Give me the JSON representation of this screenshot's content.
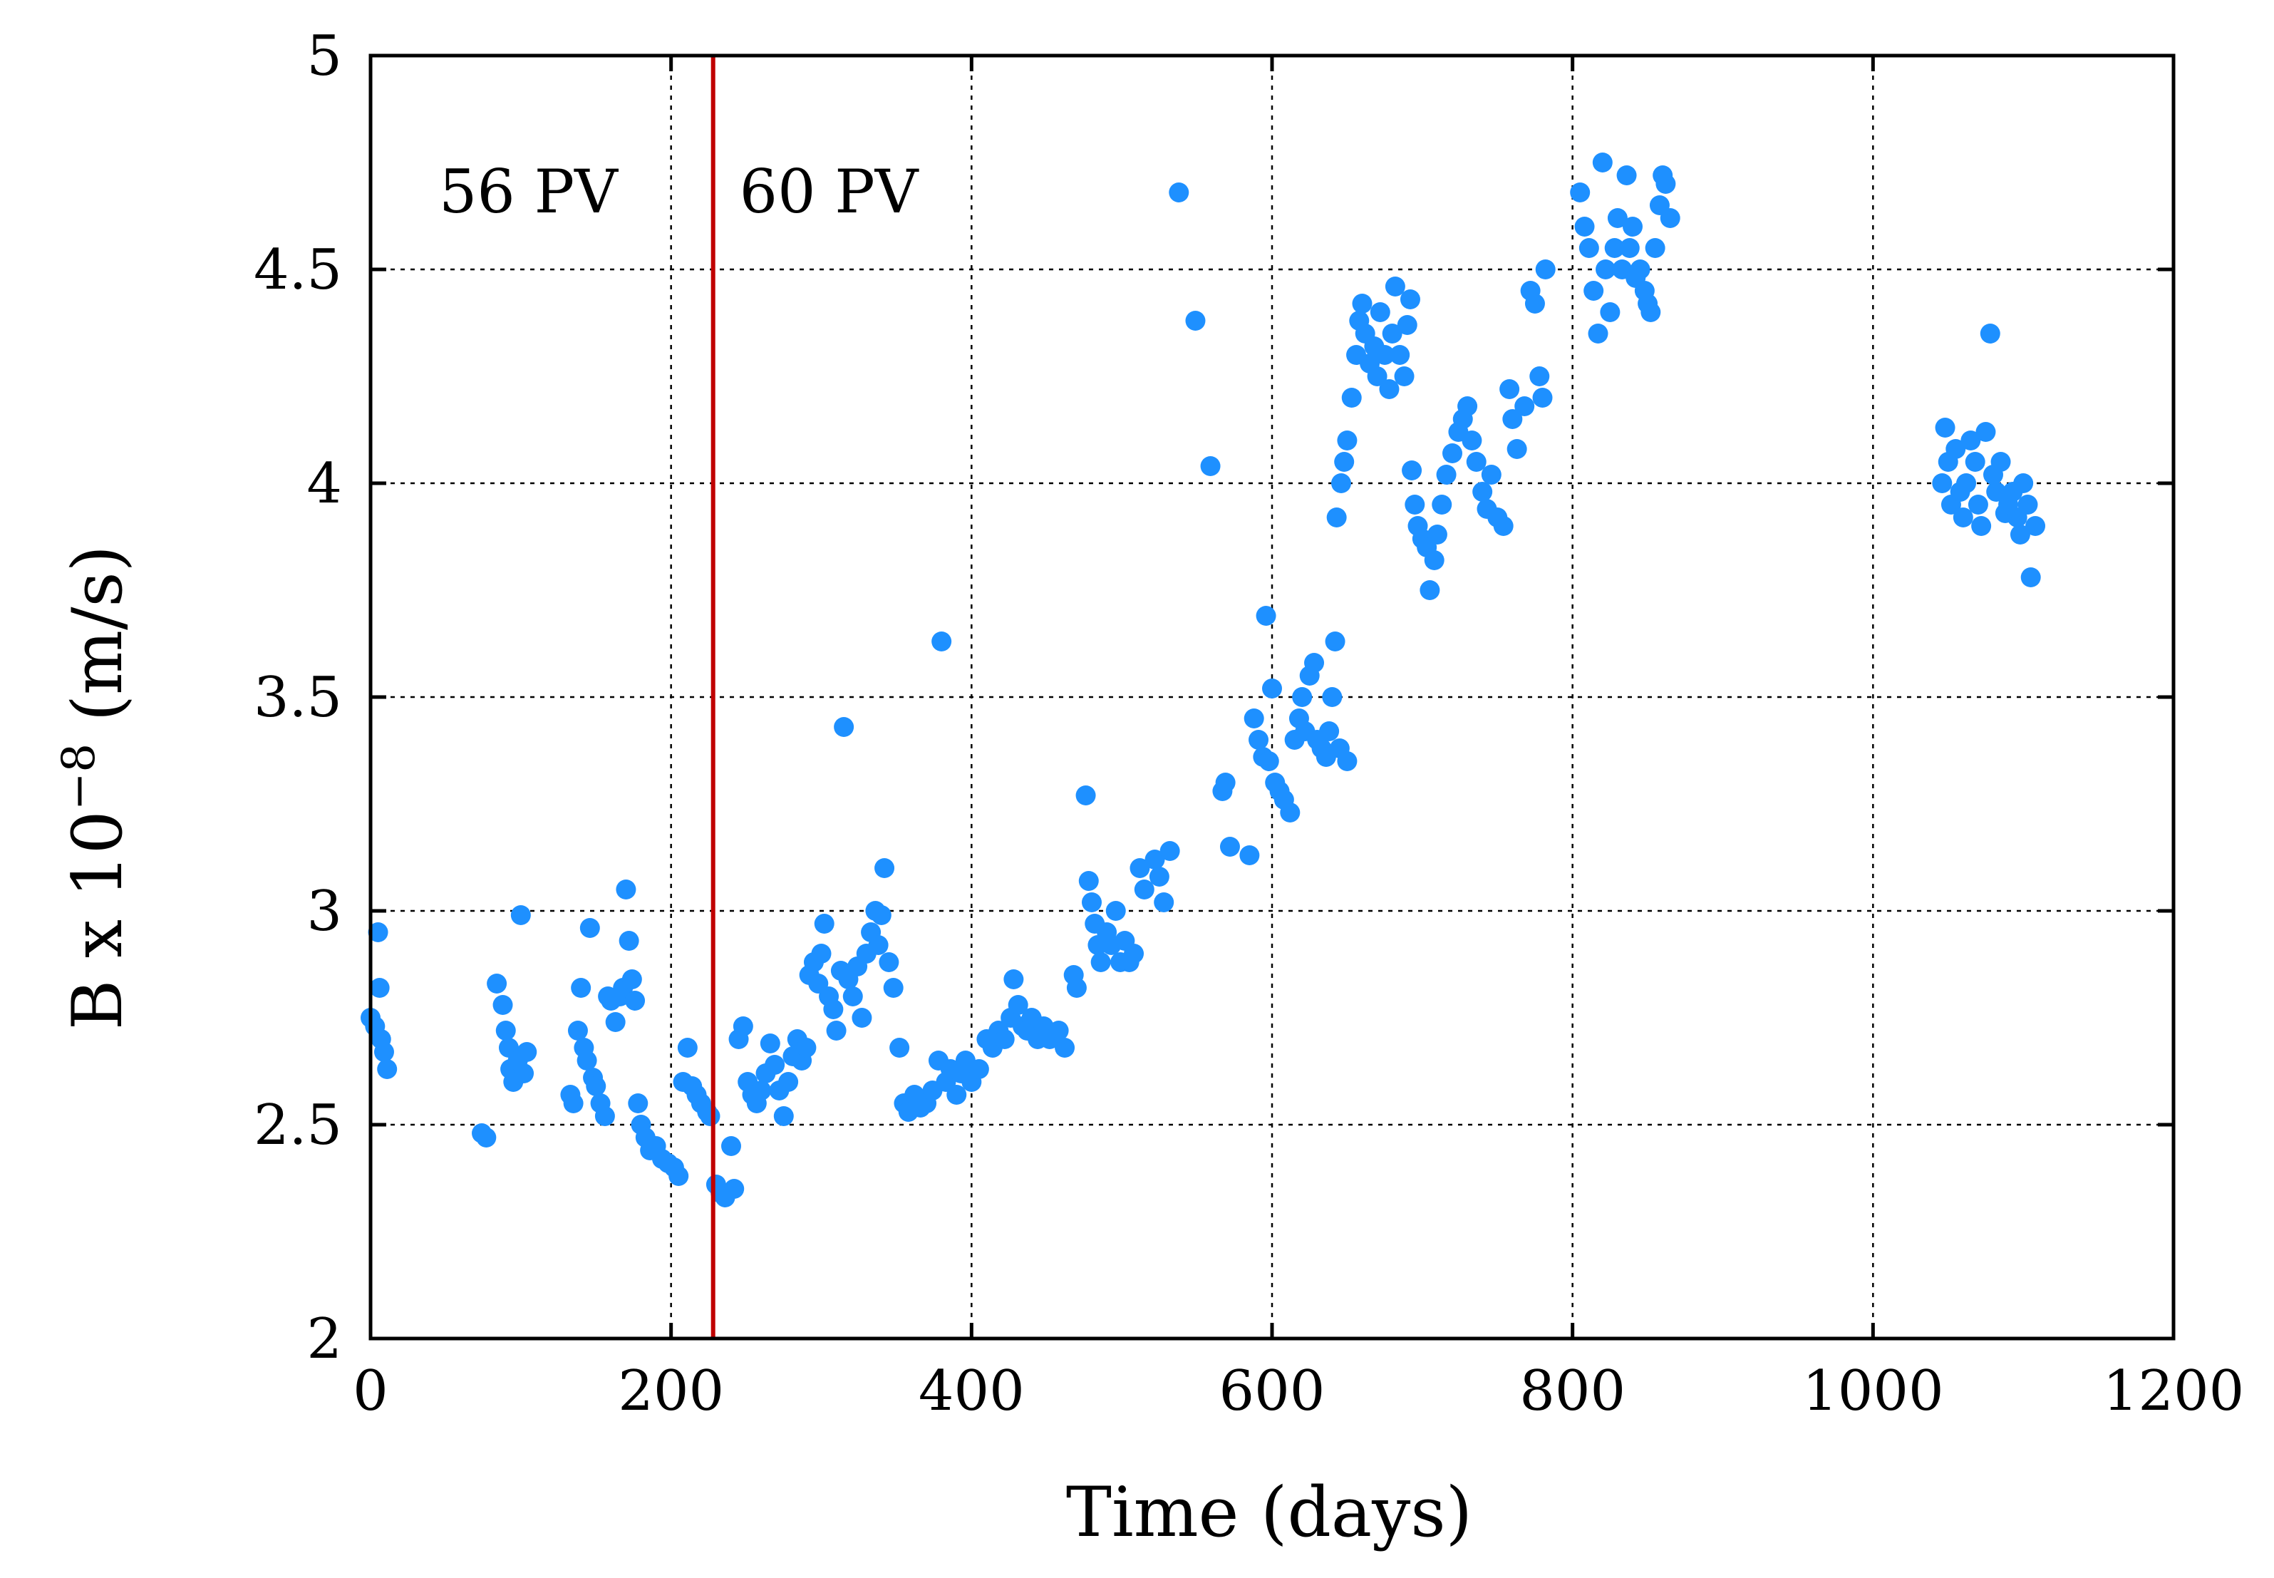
{
  "chart_data": {
    "type": "scatter",
    "title": "",
    "xlabel": "Time (days)",
    "ylabel_main": "B x 10",
    "ylabel_exp": "−8",
    "ylabel_unit": " (m/s)",
    "xlim": [
      0,
      1200
    ],
    "ylim": [
      2,
      5
    ],
    "grid": true,
    "x_ticks": [
      0,
      200,
      400,
      600,
      800,
      1000,
      1200
    ],
    "x_tick_labels": [
      "0",
      "200",
      "400",
      "600",
      "800",
      "1000",
      "1200"
    ],
    "y_ticks": [
      2,
      2.5,
      3,
      3.5,
      4,
      4.5,
      5
    ],
    "y_tick_labels": [
      "2",
      "2.5",
      "3",
      "3.5",
      "4",
      "4.5",
      "5"
    ],
    "marker_color": "#1E90FF",
    "vline": {
      "x": 228,
      "color": "#C00000"
    },
    "annotations": [
      {
        "text": "56 PV",
        "x": 105,
        "y": 4.68
      },
      {
        "text": "60 PV",
        "x": 305,
        "y": 4.68
      }
    ],
    "series": [
      {
        "name": "B",
        "points": [
          [
            0,
            2.75
          ],
          [
            3,
            2.73
          ],
          [
            5,
            2.95
          ],
          [
            6,
            2.82
          ],
          [
            7,
            2.7
          ],
          [
            9,
            2.67
          ],
          [
            11,
            2.63
          ],
          [
            74,
            2.48
          ],
          [
            77,
            2.47
          ],
          [
            84,
            2.83
          ],
          [
            88,
            2.78
          ],
          [
            90,
            2.72
          ],
          [
            92,
            2.68
          ],
          [
            93,
            2.63
          ],
          [
            95,
            2.6
          ],
          [
            98,
            2.65
          ],
          [
            100,
            2.99
          ],
          [
            102,
            2.62
          ],
          [
            104,
            2.67
          ],
          [
            133,
            2.57
          ],
          [
            135,
            2.55
          ],
          [
            138,
            2.72
          ],
          [
            140,
            2.82
          ],
          [
            142,
            2.68
          ],
          [
            144,
            2.65
          ],
          [
            146,
            2.96
          ],
          [
            148,
            2.61
          ],
          [
            150,
            2.59
          ],
          [
            153,
            2.55
          ],
          [
            156,
            2.52
          ],
          [
            158,
            2.8
          ],
          [
            160,
            2.79
          ],
          [
            163,
            2.74
          ],
          [
            166,
            2.8
          ],
          [
            168,
            2.82
          ],
          [
            170,
            3.05
          ],
          [
            172,
            2.93
          ],
          [
            174,
            2.84
          ],
          [
            176,
            2.79
          ],
          [
            178,
            2.55
          ],
          [
            180,
            2.5
          ],
          [
            183,
            2.47
          ],
          [
            186,
            2.44
          ],
          [
            190,
            2.45
          ],
          [
            194,
            2.42
          ],
          [
            198,
            2.41
          ],
          [
            202,
            2.4
          ],
          [
            205,
            2.38
          ],
          [
            208,
            2.6
          ],
          [
            211,
            2.68
          ],
          [
            214,
            2.59
          ],
          [
            217,
            2.57
          ],
          [
            220,
            2.55
          ],
          [
            224,
            2.53
          ],
          [
            226,
            2.52
          ],
          [
            230,
            2.36
          ],
          [
            233,
            2.34
          ],
          [
            236,
            2.33
          ],
          [
            240,
            2.45
          ],
          [
            242,
            2.35
          ],
          [
            245,
            2.7
          ],
          [
            248,
            2.73
          ],
          [
            251,
            2.6
          ],
          [
            254,
            2.57
          ],
          [
            257,
            2.55
          ],
          [
            260,
            2.58
          ],
          [
            263,
            2.62
          ],
          [
            266,
            2.69
          ],
          [
            269,
            2.64
          ],
          [
            272,
            2.58
          ],
          [
            275,
            2.52
          ],
          [
            278,
            2.6
          ],
          [
            281,
            2.66
          ],
          [
            284,
            2.7
          ],
          [
            287,
            2.65
          ],
          [
            290,
            2.68
          ],
          [
            292,
            2.85
          ],
          [
            295,
            2.88
          ],
          [
            298,
            2.83
          ],
          [
            300,
            2.9
          ],
          [
            302,
            2.97
          ],
          [
            305,
            2.8
          ],
          [
            308,
            2.77
          ],
          [
            310,
            2.72
          ],
          [
            313,
            2.86
          ],
          [
            315,
            3.43
          ],
          [
            318,
            2.84
          ],
          [
            321,
            2.8
          ],
          [
            324,
            2.87
          ],
          [
            327,
            2.75
          ],
          [
            330,
            2.9
          ],
          [
            333,
            2.95
          ],
          [
            336,
            3.0
          ],
          [
            338,
            2.92
          ],
          [
            340,
            2.99
          ],
          [
            342,
            3.1
          ],
          [
            345,
            2.88
          ],
          [
            348,
            2.82
          ],
          [
            352,
            2.68
          ],
          [
            355,
            2.55
          ],
          [
            358,
            2.53
          ],
          [
            362,
            2.57
          ],
          [
            366,
            2.54
          ],
          [
            370,
            2.55
          ],
          [
            374,
            2.58
          ],
          [
            378,
            2.65
          ],
          [
            380,
            3.63
          ],
          [
            383,
            2.6
          ],
          [
            386,
            2.63
          ],
          [
            390,
            2.57
          ],
          [
            393,
            2.62
          ],
          [
            396,
            2.65
          ],
          [
            400,
            2.6
          ],
          [
            405,
            2.63
          ],
          [
            410,
            2.7
          ],
          [
            414,
            2.68
          ],
          [
            418,
            2.72
          ],
          [
            422,
            2.7
          ],
          [
            426,
            2.75
          ],
          [
            428,
            2.84
          ],
          [
            431,
            2.78
          ],
          [
            434,
            2.73
          ],
          [
            437,
            2.72
          ],
          [
            440,
            2.75
          ],
          [
            444,
            2.7
          ],
          [
            448,
            2.73
          ],
          [
            452,
            2.7
          ],
          [
            458,
            2.72
          ],
          [
            462,
            2.68
          ],
          [
            468,
            2.85
          ],
          [
            470,
            2.82
          ],
          [
            476,
            3.27
          ],
          [
            478,
            3.07
          ],
          [
            480,
            3.02
          ],
          [
            482,
            2.97
          ],
          [
            484,
            2.92
          ],
          [
            486,
            2.88
          ],
          [
            490,
            2.95
          ],
          [
            493,
            2.92
          ],
          [
            496,
            3.0
          ],
          [
            499,
            2.88
          ],
          [
            502,
            2.93
          ],
          [
            505,
            2.88
          ],
          [
            508,
            2.9
          ],
          [
            512,
            3.1
          ],
          [
            515,
            3.05
          ],
          [
            522,
            3.12
          ],
          [
            525,
            3.08
          ],
          [
            528,
            3.02
          ],
          [
            532,
            3.14
          ],
          [
            538,
            4.68
          ],
          [
            549,
            4.38
          ],
          [
            559,
            4.04
          ],
          [
            567,
            3.28
          ],
          [
            569,
            3.3
          ],
          [
            572,
            3.15
          ],
          [
            585,
            3.13
          ],
          [
            588,
            3.45
          ],
          [
            591,
            3.4
          ],
          [
            594,
            3.36
          ],
          [
            596,
            3.69
          ],
          [
            598,
            3.35
          ],
          [
            600,
            3.52
          ],
          [
            602,
            3.3
          ],
          [
            605,
            3.28
          ],
          [
            608,
            3.26
          ],
          [
            612,
            3.23
          ],
          [
            615,
            3.4
          ],
          [
            618,
            3.45
          ],
          [
            620,
            3.5
          ],
          [
            622,
            3.42
          ],
          [
            625,
            3.55
          ],
          [
            628,
            3.58
          ],
          [
            630,
            3.4
          ],
          [
            633,
            3.38
          ],
          [
            636,
            3.36
          ],
          [
            638,
            3.42
          ],
          [
            640,
            3.5
          ],
          [
            642,
            3.63
          ],
          [
            645,
            3.38
          ],
          [
            650,
            3.35
          ],
          [
            643,
            3.92
          ],
          [
            646,
            4.0
          ],
          [
            648,
            4.05
          ],
          [
            650,
            4.1
          ],
          [
            653,
            4.2
          ],
          [
            656,
            4.3
          ],
          [
            658,
            4.38
          ],
          [
            660,
            4.42
          ],
          [
            662,
            4.35
          ],
          [
            665,
            4.28
          ],
          [
            668,
            4.32
          ],
          [
            670,
            4.25
          ],
          [
            672,
            4.4
          ],
          [
            675,
            4.3
          ],
          [
            678,
            4.22
          ],
          [
            680,
            4.35
          ],
          [
            682,
            4.46
          ],
          [
            685,
            4.3
          ],
          [
            688,
            4.25
          ],
          [
            690,
            4.37
          ],
          [
            692,
            4.43
          ],
          [
            693,
            4.03
          ],
          [
            695,
            3.95
          ],
          [
            697,
            3.9
          ],
          [
            700,
            3.87
          ],
          [
            703,
            3.85
          ],
          [
            705,
            3.75
          ],
          [
            708,
            3.82
          ],
          [
            710,
            3.88
          ],
          [
            713,
            3.95
          ],
          [
            716,
            4.02
          ],
          [
            720,
            4.07
          ],
          [
            724,
            4.12
          ],
          [
            727,
            4.15
          ],
          [
            730,
            4.18
          ],
          [
            733,
            4.1
          ],
          [
            736,
            4.05
          ],
          [
            740,
            3.98
          ],
          [
            743,
            3.94
          ],
          [
            746,
            4.02
          ],
          [
            750,
            3.92
          ],
          [
            754,
            3.9
          ],
          [
            758,
            4.22
          ],
          [
            760,
            4.15
          ],
          [
            763,
            4.08
          ],
          [
            768,
            4.18
          ],
          [
            772,
            4.45
          ],
          [
            775,
            4.42
          ],
          [
            778,
            4.25
          ],
          [
            780,
            4.2
          ],
          [
            782,
            4.5
          ],
          [
            805,
            4.68
          ],
          [
            808,
            4.6
          ],
          [
            811,
            4.55
          ],
          [
            814,
            4.45
          ],
          [
            817,
            4.35
          ],
          [
            820,
            4.75
          ],
          [
            822,
            4.5
          ],
          [
            825,
            4.4
          ],
          [
            828,
            4.55
          ],
          [
            830,
            4.62
          ],
          [
            833,
            4.5
          ],
          [
            836,
            4.72
          ],
          [
            838,
            4.55
          ],
          [
            840,
            4.6
          ],
          [
            842,
            4.48
          ],
          [
            845,
            4.5
          ],
          [
            848,
            4.45
          ],
          [
            850,
            4.42
          ],
          [
            852,
            4.4
          ],
          [
            855,
            4.55
          ],
          [
            858,
            4.65
          ],
          [
            860,
            4.72
          ],
          [
            862,
            4.7
          ],
          [
            865,
            4.62
          ],
          [
            1046,
            4.0
          ],
          [
            1048,
            4.13
          ],
          [
            1050,
            4.05
          ],
          [
            1052,
            3.95
          ],
          [
            1055,
            4.08
          ],
          [
            1058,
            3.98
          ],
          [
            1060,
            3.92
          ],
          [
            1062,
            4.0
          ],
          [
            1065,
            4.1
          ],
          [
            1068,
            4.05
          ],
          [
            1070,
            3.95
          ],
          [
            1072,
            3.9
          ],
          [
            1075,
            4.12
          ],
          [
            1078,
            4.35
          ],
          [
            1080,
            4.02
          ],
          [
            1082,
            3.98
          ],
          [
            1085,
            4.05
          ],
          [
            1088,
            3.93
          ],
          [
            1090,
            3.95
          ],
          [
            1093,
            3.98
          ],
          [
            1096,
            3.92
          ],
          [
            1098,
            3.88
          ],
          [
            1100,
            4.0
          ],
          [
            1103,
            3.95
          ],
          [
            1105,
            3.78
          ],
          [
            1108,
            3.9
          ]
        ]
      }
    ]
  }
}
